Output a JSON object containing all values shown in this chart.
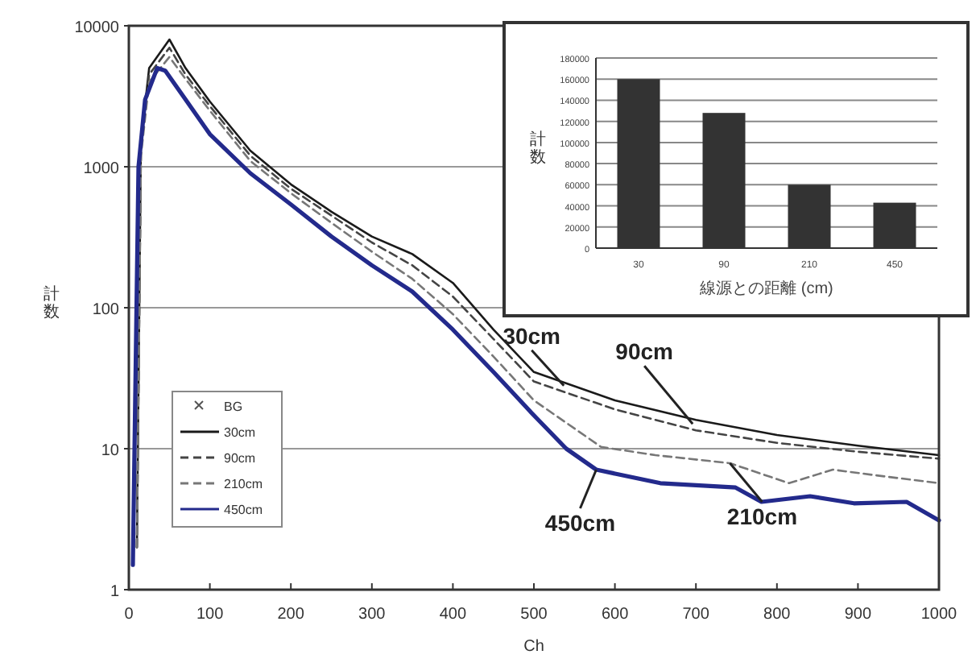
{
  "chart_data": [
    {
      "type": "line",
      "xlabel": "Ch",
      "ylabel": "計数",
      "log": "y",
      "xlim": [
        0,
        1000
      ],
      "ylim": [
        1,
        10000
      ],
      "xticks": [
        0,
        100,
        200,
        300,
        400,
        500,
        600,
        700,
        800,
        900,
        1000
      ],
      "yticks": [
        1,
        10,
        100,
        1000,
        10000
      ],
      "grid": "y",
      "legend": "bottom left",
      "series": [
        {
          "name": "BG",
          "color": "#555555",
          "marker": "cross"
        },
        {
          "name": "30cm",
          "color": "#1a1a1a",
          "line_style": "solid",
          "x": [
            10,
            15,
            25,
            50,
            70,
            100,
            150,
            200,
            250,
            300,
            350,
            400,
            450,
            500,
            600,
            700,
            800,
            900,
            1000
          ],
          "values": [
            2,
            1500,
            5000,
            8000,
            5000,
            2900,
            1300,
            750,
            480,
            320,
            240,
            150,
            70,
            35,
            22,
            16,
            12.5,
            10.5,
            9
          ]
        },
        {
          "name": "90cm",
          "color": "#444444",
          "line_style": "dashed",
          "x": [
            10,
            15,
            25,
            50,
            70,
            100,
            150,
            200,
            250,
            300,
            350,
            400,
            450,
            500,
            600,
            700,
            800,
            900,
            1000
          ],
          "values": [
            2,
            1300,
            4500,
            7000,
            4500,
            2700,
            1200,
            700,
            450,
            290,
            200,
            120,
            60,
            30,
            19,
            13.5,
            11,
            9.5,
            8.5
          ]
        },
        {
          "name": "210cm",
          "color": "#777777",
          "line_style": "dashed",
          "x": [
            10,
            15,
            25,
            50,
            70,
            100,
            150,
            200,
            250,
            300,
            350,
            400,
            450,
            500,
            583,
            650,
            742,
            815,
            869,
            920,
            1000
          ],
          "values": [
            2,
            1200,
            4000,
            6000,
            4200,
            2500,
            1100,
            650,
            400,
            250,
            160,
            90,
            45,
            22,
            10.3,
            9,
            7.9,
            5.7,
            7.1,
            6.5,
            5.7
          ]
        },
        {
          "name": "450cm",
          "color": "#232a8c",
          "line_style": "solid",
          "x": [
            5,
            12,
            20,
            35,
            45,
            70,
            100,
            150,
            200,
            250,
            300,
            350,
            400,
            450,
            497,
            540,
            577,
            656,
            749,
            781,
            841,
            895,
            960,
            1000
          ],
          "values": [
            1.5,
            1000,
            3000,
            5000,
            4800,
            3000,
            1700,
            900,
            540,
            320,
            200,
            130,
            70,
            35,
            18,
            10,
            7.1,
            5.7,
            5.3,
            4.2,
            4.6,
            4.1,
            4.2,
            3.1
          ]
        }
      ],
      "annotations": [
        {
          "text": "30cm",
          "x": 537,
          "y": 28
        },
        {
          "text": "90cm",
          "x": 696,
          "y": 15
        },
        {
          "text": "450cm",
          "x": 577,
          "y": 7.1
        },
        {
          "text": "210cm",
          "x": 742,
          "y": 7.9
        }
      ]
    },
    {
      "type": "bar",
      "xlabel": "線源との距離 (cm)",
      "ylabel": "計数",
      "categories": [
        "30",
        "90",
        "210",
        "450"
      ],
      "values": [
        160000,
        128000,
        60000,
        43000
      ],
      "color": "#333333",
      "ylim": [
        0,
        180000
      ],
      "yticks": [
        0,
        20000,
        40000,
        60000,
        80000,
        100000,
        120000,
        140000,
        160000,
        180000
      ],
      "grid": "y"
    }
  ]
}
